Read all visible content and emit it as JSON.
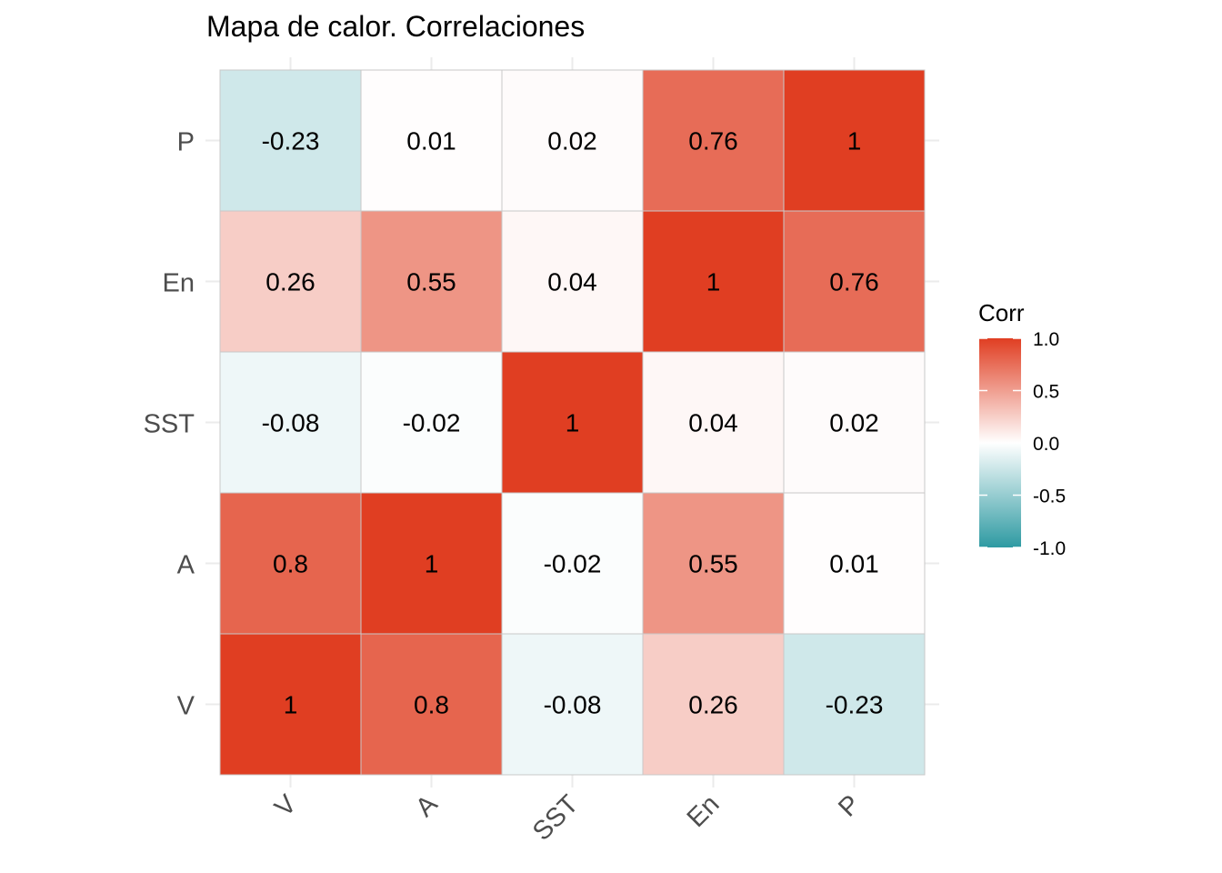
{
  "chart_data": {
    "type": "heatmap",
    "title": "Mapa de calor. Correlaciones",
    "x_categories": [
      "V",
      "A",
      "SST",
      "En",
      "P"
    ],
    "y_categories": [
      "V",
      "A",
      "SST",
      "En",
      "P"
    ],
    "values": [
      [
        1,
        0.8,
        -0.08,
        0.26,
        -0.23
      ],
      [
        0.8,
        1,
        -0.02,
        0.55,
        0.01
      ],
      [
        -0.08,
        -0.02,
        1,
        0.04,
        0.02
      ],
      [
        0.26,
        0.55,
        0.04,
        1,
        0.76
      ],
      [
        -0.23,
        0.01,
        0.02,
        0.76,
        1
      ]
    ],
    "value_labels": [
      [
        "1",
        "0.8",
        "-0.08",
        "0.26",
        "-0.23"
      ],
      [
        "0.8",
        "1",
        "-0.02",
        "0.55",
        "0.01"
      ],
      [
        "-0.08",
        "-0.02",
        "1",
        "0.04",
        "0.02"
      ],
      [
        "0.26",
        "0.55",
        "0.04",
        "1",
        "0.76"
      ],
      [
        "-0.23",
        "0.01",
        "0.02",
        "0.76",
        "1"
      ]
    ],
    "legend": {
      "title": "Corr",
      "position": "right",
      "range": [
        -1,
        1
      ],
      "ticks": [
        1.0,
        0.5,
        0.0,
        -0.5,
        -1.0
      ],
      "tick_labels": [
        "1.0",
        "0.5",
        "0.0",
        "-0.5",
        "-1.0"
      ]
    },
    "colors": {
      "low": "#2e9aa2",
      "mid": "#ffffff",
      "high": "#e03e22",
      "cell_border": "#c8c8c8"
    },
    "grid": true
  }
}
